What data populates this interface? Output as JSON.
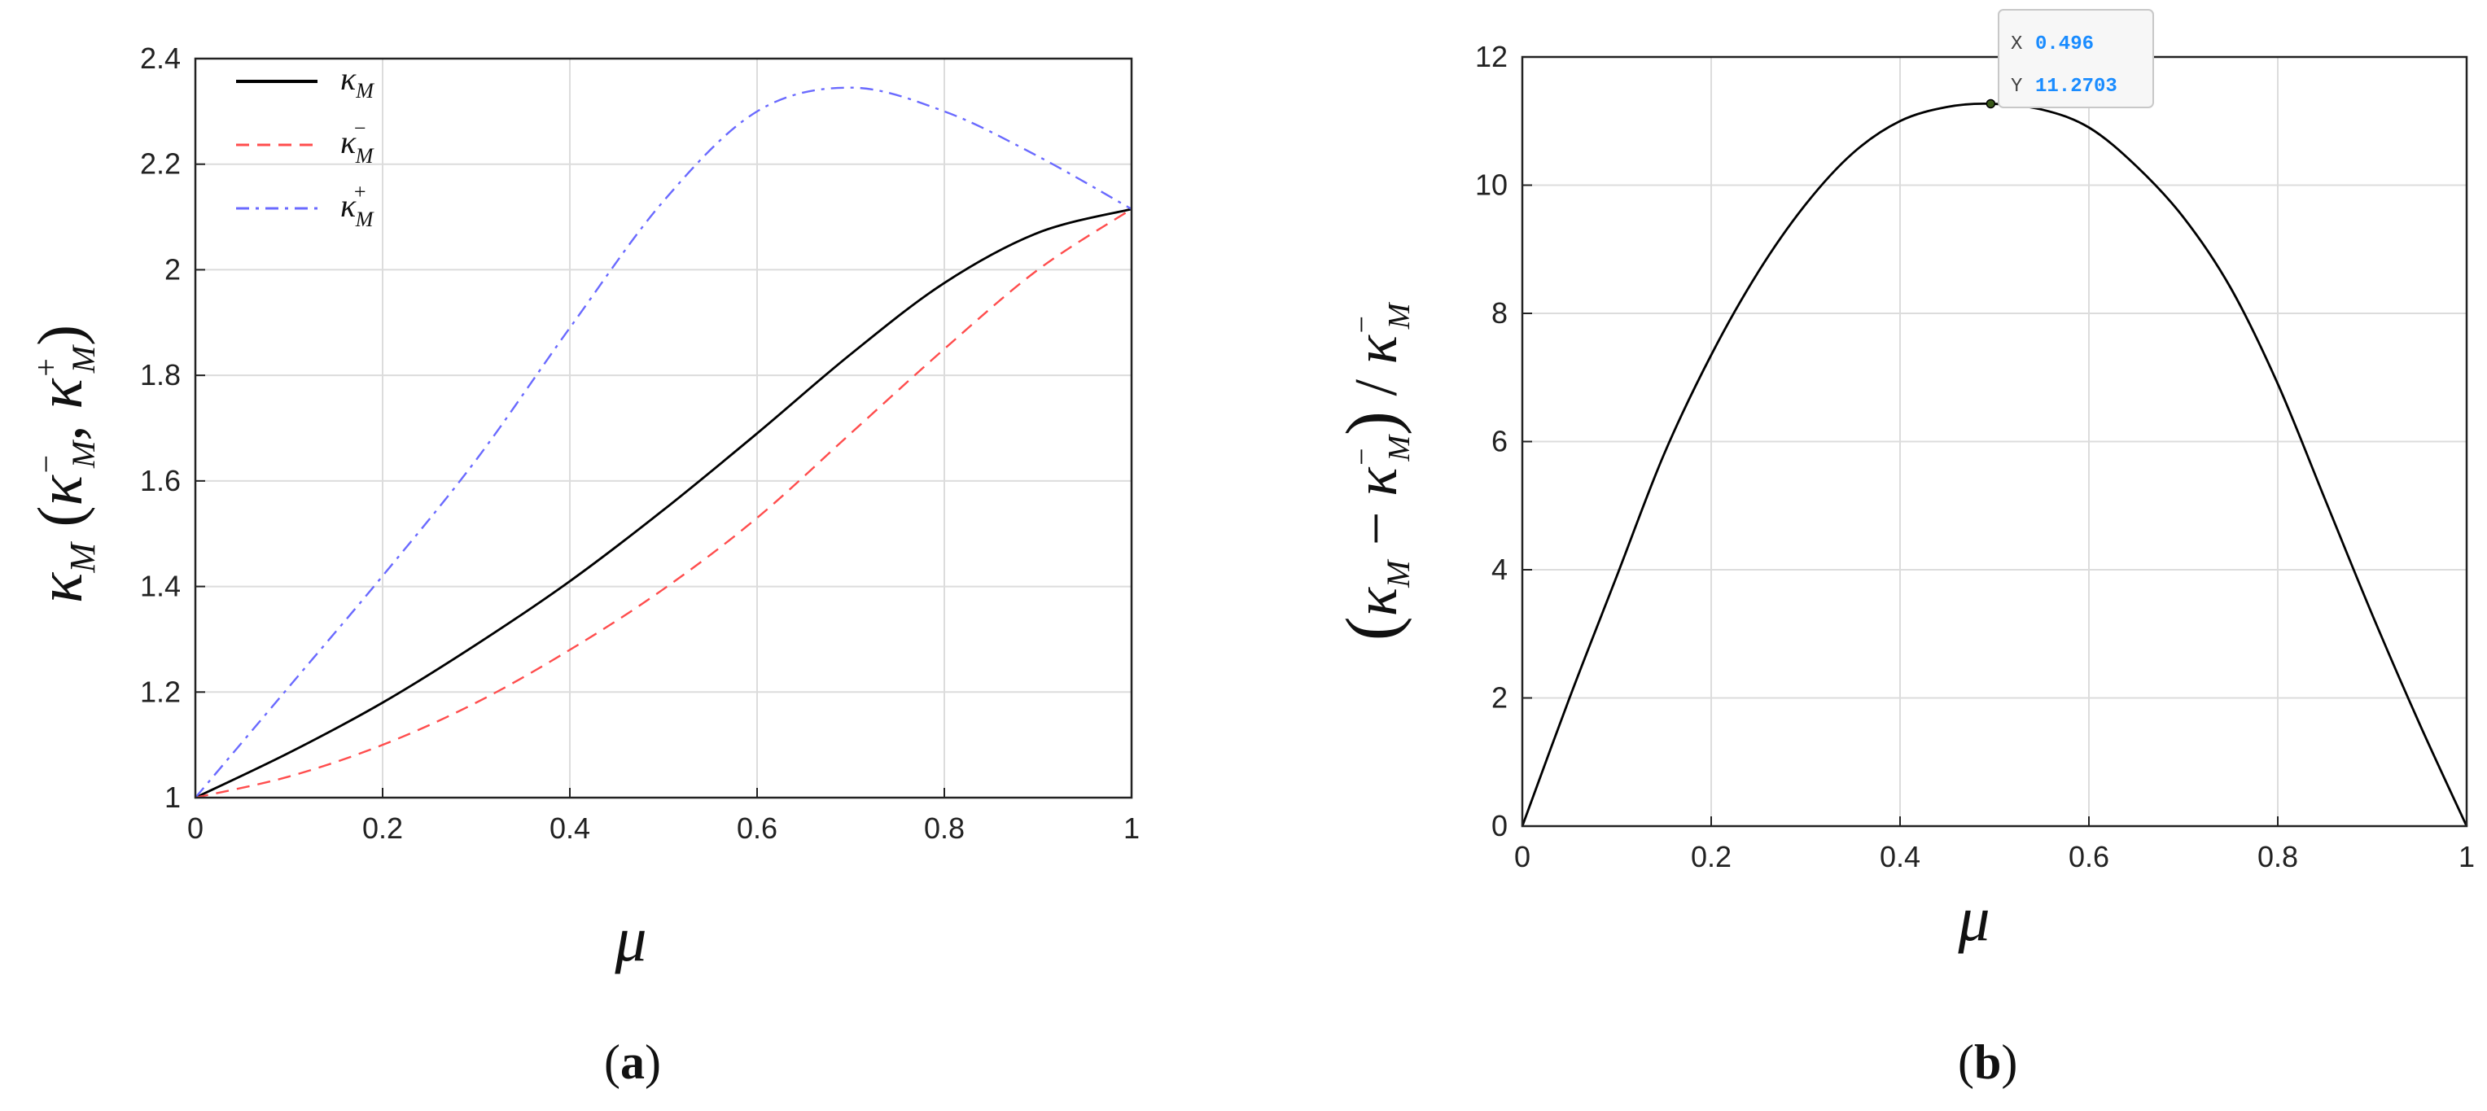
{
  "chart_data": [
    {
      "type": "line",
      "panel_label": "(a)",
      "subplot_letter": "a",
      "xlabel": "μ",
      "ylabel": "κ_M (κ_M^−, κ_M^+)",
      "xlim": [
        0,
        1
      ],
      "ylim": [
        1,
        2.4
      ],
      "x_ticks": [
        "0",
        "0.2",
        "0.4",
        "0.6",
        "0.8",
        "1"
      ],
      "y_ticks": [
        "1",
        "1.2",
        "1.4",
        "1.6",
        "1.8",
        "2",
        "2.2",
        "2.4"
      ],
      "grid": true,
      "legend_position": "top-left",
      "x": [
        0,
        0.1,
        0.2,
        0.3,
        0.4,
        0.5,
        0.6,
        0.7,
        0.8,
        0.9,
        1.0
      ],
      "series": [
        {
          "name": "κ_M",
          "color": "#000000",
          "dash": "solid",
          "values": [
            1.0,
            1.085,
            1.18,
            1.29,
            1.41,
            1.545,
            1.69,
            1.84,
            1.975,
            2.07,
            2.115
          ]
        },
        {
          "name": "κ_M^−",
          "color": "#ff4d4d",
          "dash": "dashed",
          "values": [
            1.0,
            1.04,
            1.1,
            1.18,
            1.28,
            1.395,
            1.53,
            1.69,
            1.85,
            2.0,
            2.115
          ]
        },
        {
          "name": "κ_M^+",
          "color": "#6a6aff",
          "dash": "dashdot",
          "values": [
            1.0,
            1.21,
            1.42,
            1.64,
            1.89,
            2.13,
            2.3,
            2.345,
            2.3,
            2.215,
            2.115
          ]
        }
      ],
      "legend": [
        {
          "base": "κ",
          "sub": "M",
          "sup": ""
        },
        {
          "base": "κ",
          "sub": "M",
          "sup": "−"
        },
        {
          "base": "κ",
          "sub": "M",
          "sup": "+"
        }
      ]
    },
    {
      "type": "line",
      "panel_label": "(b)",
      "subplot_letter": "b",
      "xlabel": "μ",
      "ylabel": "(κ_M − κ_M^−) / κ_M^−",
      "xlim": [
        0,
        1
      ],
      "ylim": [
        0,
        12
      ],
      "x_ticks": [
        "0",
        "0.2",
        "0.4",
        "0.6",
        "0.8",
        "1"
      ],
      "y_ticks": [
        "0",
        "2",
        "4",
        "6",
        "8",
        "10",
        "12"
      ],
      "grid": true,
      "x": [
        0,
        0.05,
        0.1,
        0.15,
        0.2,
        0.25,
        0.3,
        0.35,
        0.4,
        0.45,
        0.496,
        0.55,
        0.6,
        0.65,
        0.7,
        0.75,
        0.8,
        0.85,
        0.9,
        0.95,
        1.0
      ],
      "series": [
        {
          "name": "",
          "color": "#000000",
          "dash": "solid",
          "values": [
            0,
            2.0,
            3.9,
            5.8,
            7.35,
            8.65,
            9.7,
            10.5,
            11.0,
            11.22,
            11.2703,
            11.18,
            10.9,
            10.3,
            9.5,
            8.4,
            6.9,
            5.1,
            3.3,
            1.6,
            0
          ]
        }
      ],
      "datatip": {
        "x_label": "X",
        "x_value": "0.496",
        "y_label": "Y",
        "y_value": "11.2703",
        "x": 0.496,
        "y": 11.2703
      }
    }
  ]
}
